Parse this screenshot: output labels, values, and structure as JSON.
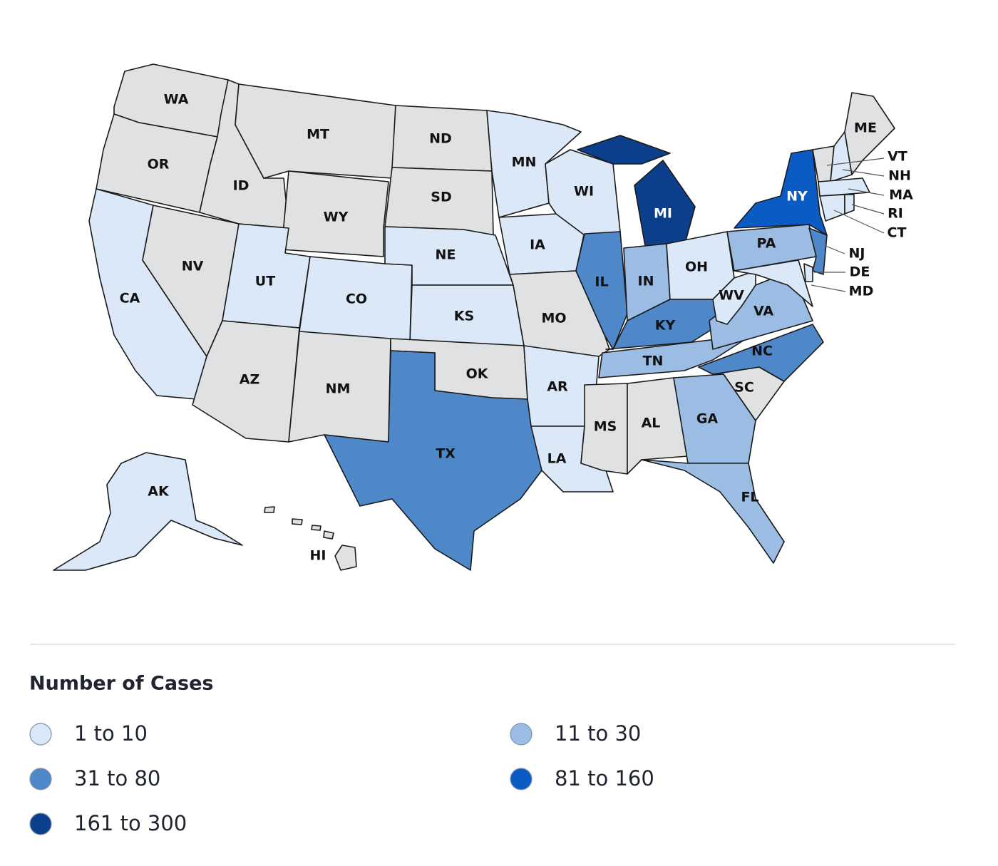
{
  "map": {
    "no_data_color": "#e0e1e3",
    "states": [
      {
        "label": "WA",
        "bin": null
      },
      {
        "label": "OR",
        "bin": null
      },
      {
        "label": "CA",
        "bin": 0
      },
      {
        "label": "NV",
        "bin": null
      },
      {
        "label": "ID",
        "bin": null
      },
      {
        "label": "MT",
        "bin": null
      },
      {
        "label": "WY",
        "bin": null
      },
      {
        "label": "UT",
        "bin": 0
      },
      {
        "label": "CO",
        "bin": 0
      },
      {
        "label": "AZ",
        "bin": null
      },
      {
        "label": "NM",
        "bin": null
      },
      {
        "label": "ND",
        "bin": null
      },
      {
        "label": "SD",
        "bin": null
      },
      {
        "label": "NE",
        "bin": 0
      },
      {
        "label": "KS",
        "bin": 0
      },
      {
        "label": "OK",
        "bin": null
      },
      {
        "label": "TX",
        "bin": 2
      },
      {
        "label": "MN",
        "bin": 0
      },
      {
        "label": "IA",
        "bin": 0
      },
      {
        "label": "MO",
        "bin": null
      },
      {
        "label": "AR",
        "bin": 0
      },
      {
        "label": "LA",
        "bin": 0
      },
      {
        "label": "WI",
        "bin": 0
      },
      {
        "label": "IL",
        "bin": 2
      },
      {
        "label": "MI",
        "bin": 4
      },
      {
        "label": "IN",
        "bin": 1
      },
      {
        "label": "OH",
        "bin": 0
      },
      {
        "label": "KY",
        "bin": 2
      },
      {
        "label": "TN",
        "bin": 1
      },
      {
        "label": "MS",
        "bin": null
      },
      {
        "label": "AL",
        "bin": null
      },
      {
        "label": "GA",
        "bin": 1
      },
      {
        "label": "FL",
        "bin": 1
      },
      {
        "label": "SC",
        "bin": null
      },
      {
        "label": "NC",
        "bin": 2
      },
      {
        "label": "VA",
        "bin": 1
      },
      {
        "label": "WV",
        "bin": 0
      },
      {
        "label": "PA",
        "bin": 1
      },
      {
        "label": "NY",
        "bin": 3
      },
      {
        "label": "NJ",
        "bin": 2
      },
      {
        "label": "MD",
        "bin": 0
      },
      {
        "label": "DE",
        "bin": 0
      },
      {
        "label": "VT",
        "bin": null
      },
      {
        "label": "NH",
        "bin": 0
      },
      {
        "label": "ME",
        "bin": null
      },
      {
        "label": "MA",
        "bin": 0
      },
      {
        "label": "CT",
        "bin": 0
      },
      {
        "label": "RI",
        "bin": 0
      },
      {
        "label": "AK",
        "bin": 0
      },
      {
        "label": "HI",
        "bin": null
      }
    ]
  },
  "legend": {
    "title": "Number of Cases",
    "items": [
      {
        "label": "1 to 10",
        "color": "#dbe8f7"
      },
      {
        "label": "11 to 30",
        "color": "#9bbde3"
      },
      {
        "label": "31 to 80",
        "color": "#4f88c8"
      },
      {
        "label": "81 to 160",
        "color": "#0a5bc4"
      },
      {
        "label": "161 to 300",
        "color": "#0b3f8c"
      }
    ]
  }
}
